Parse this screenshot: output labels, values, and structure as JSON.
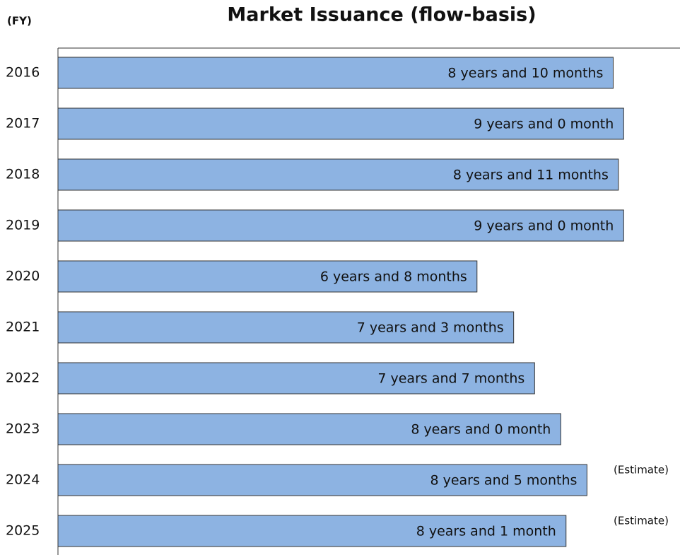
{
  "chart_data": {
    "type": "bar",
    "orientation": "horizontal",
    "title": "Market Issuance (flow-basis)",
    "y_label": "(FY)",
    "categories": [
      "2016",
      "2017",
      "2018",
      "2019",
      "2020",
      "2021",
      "2022",
      "2023",
      "2024",
      "2025"
    ],
    "values": [
      106,
      108,
      107,
      108,
      80,
      87,
      91,
      96,
      101,
      97
    ],
    "value_labels": [
      "8 years and 10 months",
      "9 years and 0 month",
      "8 years and 11 months",
      "9 years and 0 month",
      "6 years and 8 months",
      "7 years and 3 months",
      "7 years and 7 months",
      "8 years and 0 month",
      "8 years and 5 months",
      "8 years and 1 month"
    ],
    "notes": [
      null,
      null,
      null,
      null,
      null,
      null,
      null,
      null,
      "(Estimate)",
      "(Estimate)"
    ],
    "color": "#8db3e2"
  }
}
